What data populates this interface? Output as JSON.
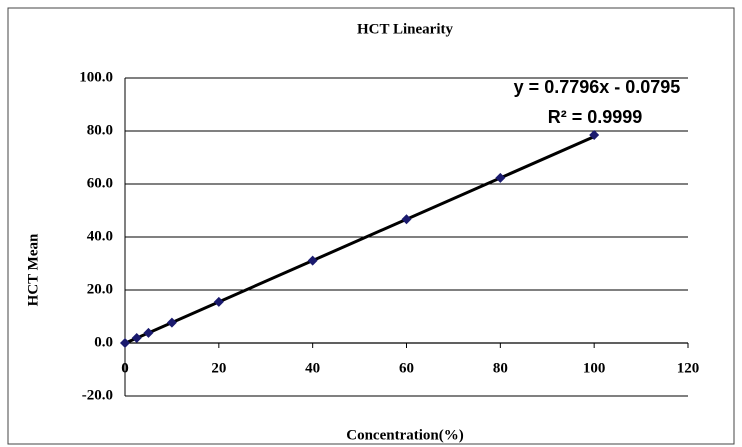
{
  "chart_data": {
    "type": "scatter",
    "title": "HCT Linearity",
    "x_label": "Concentration(%)",
    "y_label": "HCT Mean",
    "series": [
      {
        "name": "HCT Mean",
        "color": "#1a1a6e",
        "x": [
          0,
          2.5,
          5,
          10,
          20,
          40,
          60,
          80,
          100
        ],
        "values": [
          0.0,
          1.9,
          3.8,
          7.7,
          15.5,
          31.1,
          46.7,
          62.3,
          78.5
        ]
      }
    ],
    "trendline": {
      "slope": 0.7796,
      "intercept": -0.0795,
      "color": "#000000"
    },
    "annotations": [
      "y = 0.7796x - 0.0795",
      "R² = 0.9999"
    ],
    "xlim": [
      0,
      120
    ],
    "xticks": [
      0,
      20,
      40,
      60,
      80,
      100,
      120
    ],
    "ylim": [
      -20,
      100
    ],
    "yticks": [
      {
        "value": -20,
        "label": "-20.0"
      },
      {
        "value": 0,
        "label": "0.0"
      },
      {
        "value": 20,
        "label": "20.0"
      },
      {
        "value": 40,
        "label": "40.0"
      },
      {
        "value": 60,
        "label": "60.0"
      },
      {
        "value": 80,
        "label": "80.0"
      },
      {
        "value": 100,
        "label": "100.0"
      }
    ],
    "grid": true
  }
}
